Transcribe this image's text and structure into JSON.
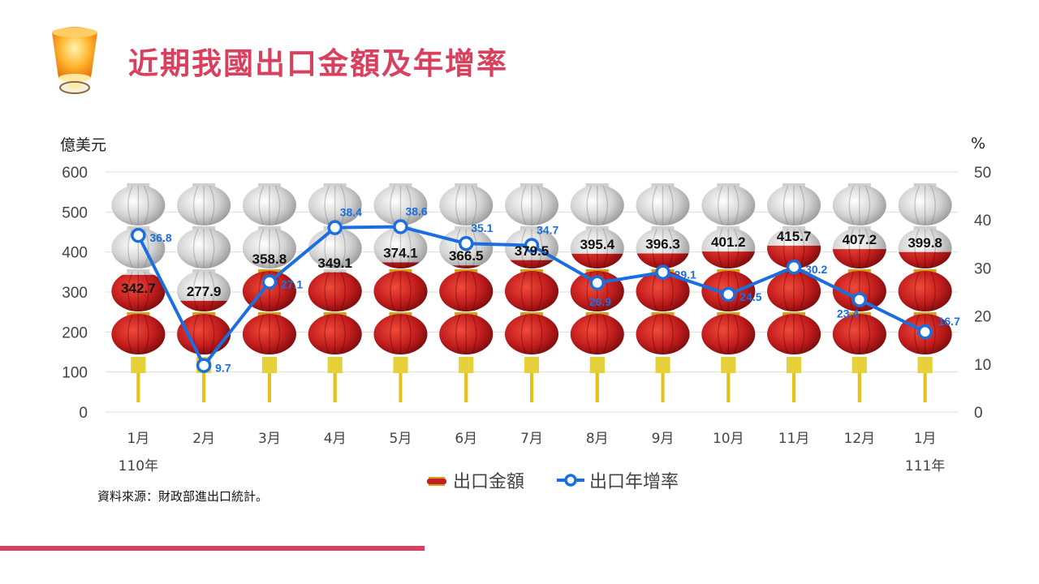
{
  "title": "近期我國出口金額及年增率",
  "units": {
    "left": "億美元",
    "right": "%"
  },
  "source_note": "資料來源：財政部進出口統計。",
  "colors": {
    "title": "#d8405e",
    "line": "#1a6ee0",
    "lantern_red": "#c41e1e",
    "lantern_gray": "#d3d3d3",
    "accent_bar": "#d8405e"
  },
  "chart_data": {
    "type": "bar",
    "categories": [
      "1月",
      "2月",
      "3月",
      "4月",
      "5月",
      "6月",
      "7月",
      "8月",
      "9月",
      "10月",
      "11月",
      "12月",
      "1月"
    ],
    "year_labels": [
      "110年",
      "",
      "",
      "",
      "",
      "",
      "",
      "",
      "",
      "",
      "",
      "",
      "111年"
    ],
    "series": [
      {
        "name": "出口金額",
        "type": "bar",
        "axis": "left",
        "values": [
          342.7,
          277.9,
          358.8,
          349.1,
          374.1,
          366.5,
          379.5,
          395.4,
          396.3,
          401.2,
          415.7,
          407.2,
          399.8
        ]
      },
      {
        "name": "出口年增率",
        "type": "line",
        "axis": "right",
        "values": [
          36.8,
          9.7,
          27.1,
          38.4,
          38.6,
          35.1,
          34.7,
          26.9,
          29.1,
          24.5,
          30.2,
          23.4,
          16.7
        ]
      }
    ],
    "y_left": {
      "min": 0,
      "max": 600,
      "ticks": [
        0,
        100,
        200,
        300,
        400,
        500,
        600
      ]
    },
    "y_right": {
      "min": 0,
      "max": 50,
      "ticks": [
        0,
        10,
        20,
        30,
        40,
        50
      ]
    },
    "grid": true,
    "legend_position": "bottom"
  }
}
